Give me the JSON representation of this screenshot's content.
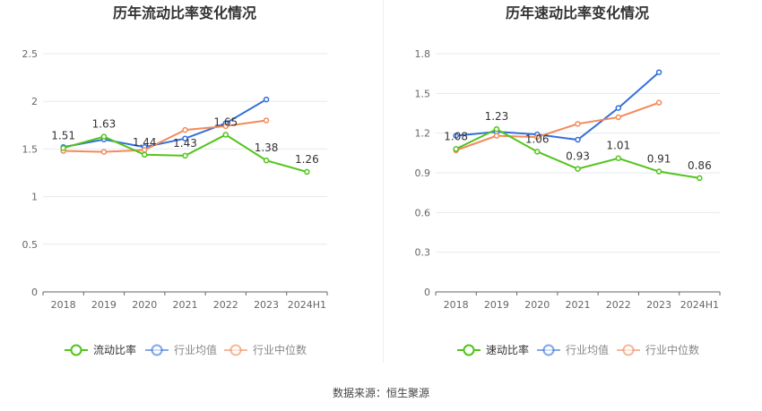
{
  "source_label": "数据来源：恒生聚源",
  "chart_data": [
    {
      "type": "line",
      "title": "历年流动比率变化情况",
      "categories": [
        "2018",
        "2019",
        "2020",
        "2021",
        "2022",
        "2023",
        "2024H1"
      ],
      "ylim": [
        0,
        2.5
      ],
      "yticks": [
        "0",
        "0.5",
        "1",
        "1.5",
        "2",
        "2.5"
      ],
      "grid": true,
      "legend_position": "bottom",
      "series": [
        {
          "name": "流动比率",
          "color": "#52c41a",
          "values": [
            1.51,
            1.63,
            1.44,
            1.43,
            1.65,
            1.38,
            1.26
          ],
          "labels": [
            "1.51",
            "1.63",
            "1.44",
            "1.43",
            "1.65",
            "1.38",
            "1.26"
          ]
        },
        {
          "name": "行业均值",
          "color": "#3370db",
          "values": [
            1.52,
            1.6,
            1.52,
            1.61,
            1.77,
            2.02,
            null
          ]
        },
        {
          "name": "行业中位数",
          "color": "#f28a5b",
          "values": [
            1.48,
            1.47,
            1.49,
            1.7,
            1.74,
            1.8,
            null
          ]
        }
      ]
    },
    {
      "type": "line",
      "title": "历年速动比率变化情况",
      "categories": [
        "2018",
        "2019",
        "2020",
        "2021",
        "2022",
        "2023",
        "2024H1"
      ],
      "ylim": [
        0,
        1.8
      ],
      "yticks": [
        "0",
        "0.3",
        "0.6",
        "0.9",
        "1.2",
        "1.5",
        "1.8"
      ],
      "grid": true,
      "legend_position": "bottom",
      "series": [
        {
          "name": "速动比率",
          "color": "#52c41a",
          "values": [
            1.08,
            1.23,
            1.06,
            0.93,
            1.01,
            0.91,
            0.86
          ],
          "labels": [
            "1.08",
            "1.23",
            "1.06",
            "0.93",
            "1.01",
            "0.91",
            "0.86"
          ]
        },
        {
          "name": "行业均值",
          "color": "#3370db",
          "values": [
            1.18,
            1.21,
            1.19,
            1.15,
            1.39,
            1.66,
            null
          ]
        },
        {
          "name": "行业中位数",
          "color": "#f28a5b",
          "values": [
            1.07,
            1.18,
            1.17,
            1.27,
            1.32,
            1.43,
            null
          ]
        }
      ]
    }
  ]
}
